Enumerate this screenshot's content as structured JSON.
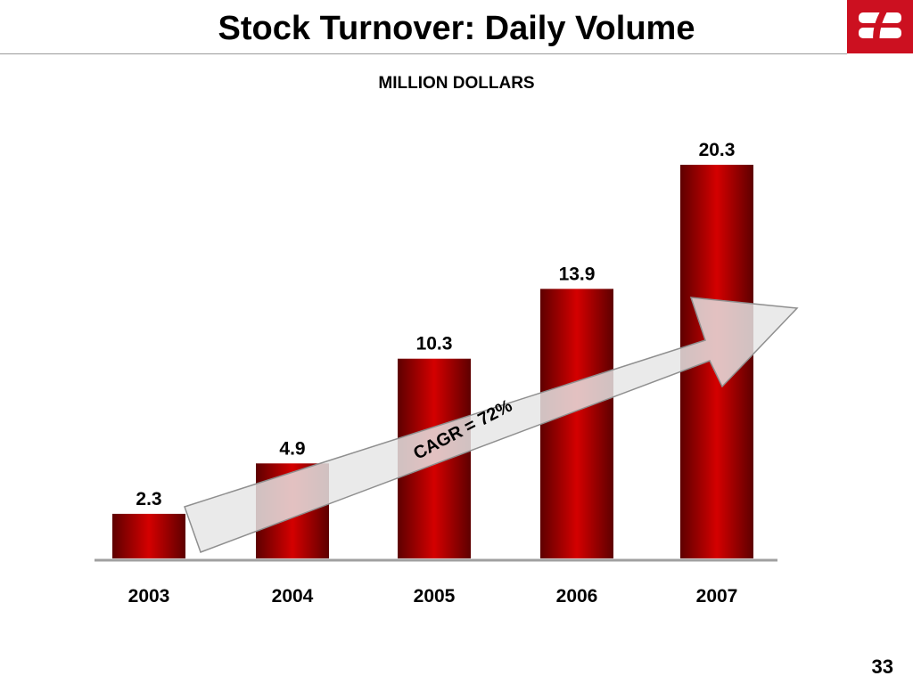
{
  "slide": {
    "title": "Stock Turnover: Daily Volume",
    "subtitle": "MILLION DOLLARS",
    "page_number": "33"
  },
  "logo": {
    "icon": "bank-logo-icon",
    "color": "#cc1020"
  },
  "chart_data": {
    "type": "bar",
    "categories": [
      "2003",
      "2004",
      "2005",
      "2006",
      "2007"
    ],
    "values": [
      2.3,
      4.9,
      10.3,
      13.9,
      20.3
    ],
    "data_labels": [
      "2.3",
      "4.9",
      "10.3",
      "13.9",
      "20.3"
    ],
    "title": "Stock Turnover: Daily Volume",
    "ylabel": "MILLION DOLLARS",
    "ylim": [
      0,
      20.3
    ],
    "grid": false,
    "legend": "none",
    "bar_color": "#d40000",
    "bar_shadow_color": "#5e0000",
    "annotation": {
      "text": "CAGR = 72%",
      "shape": "arrow"
    }
  }
}
